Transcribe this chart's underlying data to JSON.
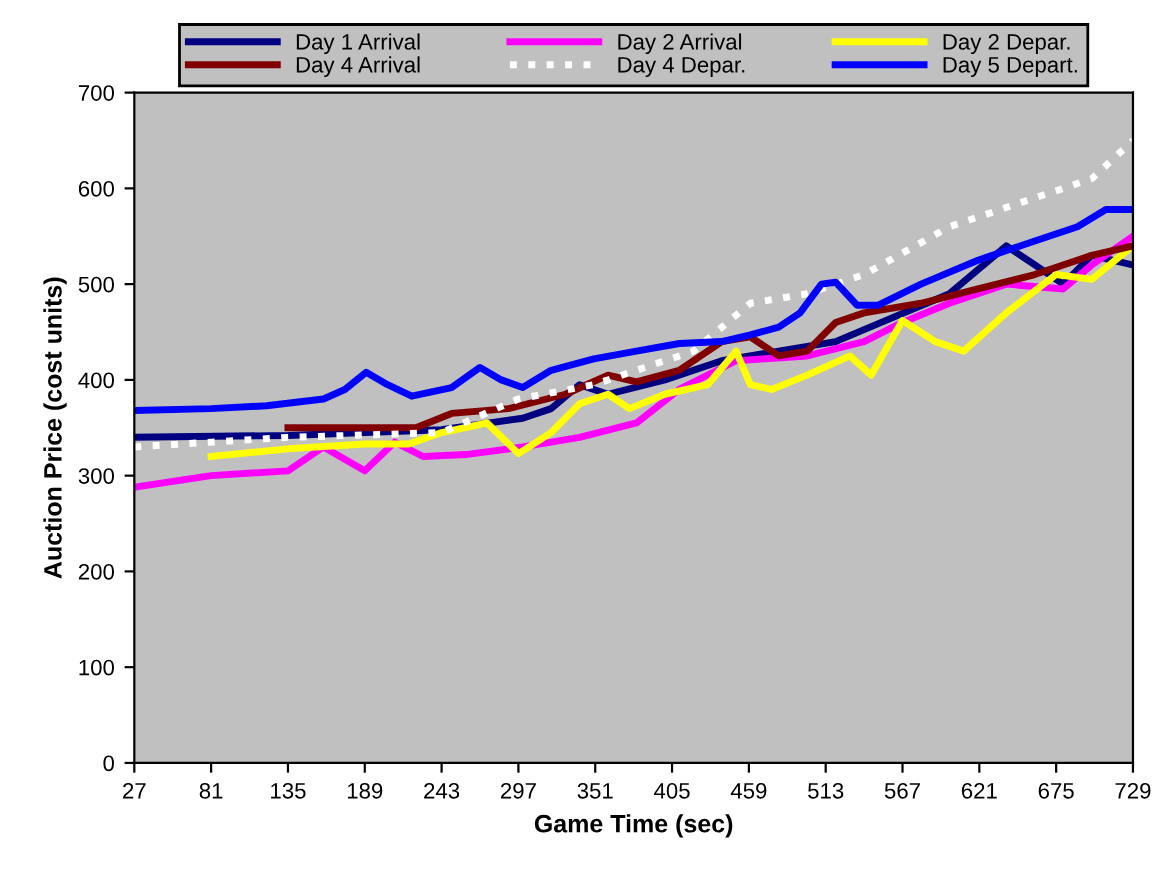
{
  "chart_data": {
    "type": "line",
    "xlabel": "Game Time (sec)",
    "ylabel": "Auction Price (cost units)",
    "xlim": [
      27,
      729
    ],
    "ylim": [
      0,
      700
    ],
    "xticks": [
      27,
      81,
      135,
      189,
      243,
      297,
      351,
      405,
      459,
      513,
      567,
      621,
      675,
      729
    ],
    "yticks": [
      0,
      100,
      200,
      300,
      400,
      500,
      600,
      700
    ],
    "grid": false,
    "legend": "top",
    "marker": "none",
    "series": [
      {
        "name": "Day 1 Arrival",
        "color": "#000080",
        "line_style": "solid",
        "x": [
          27,
          135,
          189,
          243,
          300,
          320,
          340,
          360,
          400,
          440,
          480,
          520,
          560,
          600,
          640,
          660,
          680,
          700,
          729
        ],
        "values": [
          340,
          342,
          345,
          348,
          360,
          370,
          395,
          385,
          400,
          420,
          430,
          440,
          465,
          490,
          540,
          520,
          500,
          530,
          520
        ]
      },
      {
        "name": "Day 2 Arrival",
        "color": "#ff00ff",
        "line_style": "solid",
        "x": [
          27,
          81,
          135,
          160,
          189,
          210,
          230,
          260,
          300,
          340,
          380,
          410,
          450,
          500,
          540,
          567,
          600,
          640,
          680,
          700,
          729
        ],
        "values": [
          288,
          300,
          305,
          330,
          305,
          335,
          320,
          322,
          330,
          340,
          355,
          390,
          420,
          425,
          440,
          460,
          480,
          500,
          495,
          520,
          550
        ]
      },
      {
        "name": "Day 2 Depar.",
        "color": "#ffff00",
        "line_style": "solid",
        "x": [
          81,
          135,
          189,
          220,
          243,
          275,
          297,
          320,
          340,
          360,
          375,
          400,
          430,
          450,
          460,
          475,
          500,
          530,
          545,
          567,
          590,
          610,
          640,
          675,
          700,
          729
        ],
        "values": [
          320,
          328,
          333,
          333,
          345,
          355,
          323,
          345,
          375,
          385,
          370,
          385,
          395,
          430,
          395,
          390,
          405,
          425,
          405,
          462,
          440,
          430,
          470,
          510,
          505,
          540
        ]
      },
      {
        "name": "Day 4 Arrival",
        "color": "#800000",
        "line_style": "solid",
        "x": [
          135,
          225,
          250,
          290,
          330,
          360,
          380,
          410,
          440,
          460,
          480,
          500,
          520,
          540,
          580,
          620,
          660,
          700,
          729
        ],
        "values": [
          350,
          350,
          365,
          370,
          385,
          405,
          398,
          410,
          440,
          445,
          425,
          430,
          460,
          470,
          480,
          495,
          510,
          530,
          540
        ]
      },
      {
        "name": "Day 4 Depar.",
        "color": "#ffffff",
        "line_style": "dotted",
        "x": [
          27,
          135,
          243,
          297,
          350,
          420,
          460,
          500,
          540,
          600,
          660,
          700,
          729
        ],
        "values": [
          330,
          340,
          345,
          380,
          395,
          430,
          480,
          490,
          510,
          560,
          590,
          610,
          650
        ]
      },
      {
        "name": "Day 5 Depart.",
        "color": "#0000ff",
        "line_style": "solid",
        "x": [
          27,
          81,
          120,
          160,
          175,
          190,
          205,
          222,
          250,
          270,
          285,
          300,
          320,
          350,
          380,
          410,
          440,
          460,
          480,
          495,
          510,
          520,
          535,
          550,
          580,
          620,
          660,
          690,
          710,
          729
        ],
        "values": [
          368,
          370,
          373,
          380,
          390,
          408,
          395,
          383,
          392,
          413,
          400,
          392,
          410,
          422,
          430,
          438,
          440,
          447,
          455,
          470,
          500,
          502,
          478,
          478,
          500,
          525,
          545,
          560,
          578,
          578
        ]
      }
    ]
  }
}
